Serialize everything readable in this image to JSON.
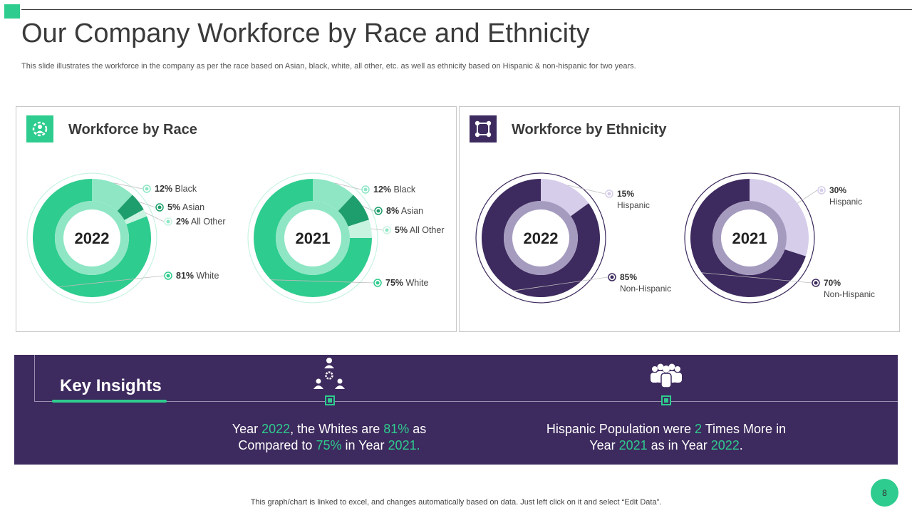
{
  "header": {
    "title": "Our Company Workforce by Race and Ethnicity",
    "subtitle": "This slide illustrates the workforce in the company as per the race based on Asian, black, white, all other, etc. as well as ethnicity based on Hispanic & non-hispanic for two years."
  },
  "panels": {
    "race": {
      "title": "Workforce by Race",
      "icon": "team-gear-icon"
    },
    "ethnicity": {
      "title": "Workforce by Ethnicity",
      "icon": "group-frame-icon"
    }
  },
  "colors": {
    "green": "#2ecc8e",
    "green_light": "#8ee6c4",
    "green_dark": "#1e9e6c",
    "green_pale": "#c9f3e1",
    "purple": "#3d2a5e",
    "lavender": "#d6cdea"
  },
  "chart_data": [
    {
      "type": "pie",
      "subtype": "donut",
      "center_label": "2022",
      "title": "Workforce by Race",
      "slices": [
        {
          "label": "Black",
          "value": 12,
          "display": "12%"
        },
        {
          "label": "Asian",
          "value": 5,
          "display": "5%"
        },
        {
          "label": "All Other",
          "value": 2,
          "display": "2%"
        },
        {
          "label": "White",
          "value": 81,
          "display": "81%"
        }
      ]
    },
    {
      "type": "pie",
      "subtype": "donut",
      "center_label": "2021",
      "title": "Workforce by Race",
      "slices": [
        {
          "label": "Black",
          "value": 12,
          "display": "12%"
        },
        {
          "label": "Asian",
          "value": 8,
          "display": "8%"
        },
        {
          "label": "All Other",
          "value": 5,
          "display": "5%"
        },
        {
          "label": "White",
          "value": 75,
          "display": "75%"
        }
      ]
    },
    {
      "type": "pie",
      "subtype": "donut",
      "center_label": "2022",
      "title": "Workforce by Ethnicity",
      "slices": [
        {
          "label": "Hispanic",
          "value": 15,
          "display": "15%"
        },
        {
          "label": "Non-Hispanic",
          "value": 85,
          "display": "85%"
        }
      ]
    },
    {
      "type": "pie",
      "subtype": "donut",
      "center_label": "2021",
      "title": "Workforce by Ethnicity",
      "slices": [
        {
          "label": "Hispanic",
          "value": 30,
          "display": "30%"
        },
        {
          "label": "Non-Hispanic",
          "value": 70,
          "display": "70%"
        }
      ]
    }
  ],
  "insights": {
    "title": "Key Insights",
    "icons": [
      "team-hierarchy-icon",
      "crowd-icon"
    ],
    "insight1": {
      "p1": "Year ",
      "h1": "2022",
      "p2": ", the Whites are ",
      "h2": "81%",
      "p3": " as",
      "p4": "Compared to ",
      "h3": "75%",
      "p5": " in Year ",
      "h4": "2021."
    },
    "insight2": {
      "p1": "Hispanic Population were ",
      "h1": "2",
      "p2": " Times More in",
      "p3": "Year ",
      "h2": "2021",
      "p4": " as in Year ",
      "h3": "2022",
      "p5": "."
    }
  },
  "footer": {
    "note": "This graph/chart is linked to excel,  and changes automatically based on data. Just left click on it and select “Edit Data”.",
    "page_number": "8"
  }
}
